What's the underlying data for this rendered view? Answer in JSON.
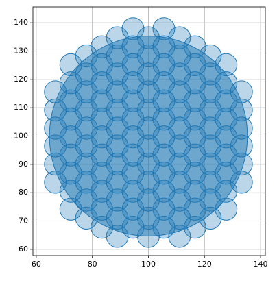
{
  "chart_data": {
    "type": "scatter",
    "x": [
      66.8,
      66.8,
      66.8,
      66.8,
      66.8,
      66.8,
      72.3,
      72.3,
      72.3,
      72.3,
      72.3,
      72.3,
      72.3,
      72.3,
      72.3,
      77.9,
      77.9,
      77.9,
      77.9,
      77.9,
      77.9,
      77.9,
      77.9,
      77.9,
      77.9,
      83.4,
      83.4,
      83.4,
      83.4,
      83.4,
      83.4,
      83.4,
      83.4,
      83.4,
      83.4,
      83.4,
      88.9,
      88.9,
      88.9,
      88.9,
      88.9,
      88.9,
      88.9,
      88.9,
      88.9,
      88.9,
      88.9,
      88.9,
      94.5,
      94.5,
      94.5,
      94.5,
      94.5,
      94.5,
      94.5,
      94.5,
      94.5,
      94.5,
      94.5,
      94.5,
      100,
      100,
      100,
      100,
      100,
      100,
      100,
      100,
      100,
      100,
      100,
      100,
      105.5,
      105.5,
      105.5,
      105.5,
      105.5,
      105.5,
      105.5,
      105.5,
      105.5,
      105.5,
      105.5,
      105.5,
      111.1,
      111.1,
      111.1,
      111.1,
      111.1,
      111.1,
      111.1,
      111.1,
      111.1,
      111.1,
      111.1,
      111.1,
      116.6,
      116.6,
      116.6,
      116.6,
      116.6,
      116.6,
      116.6,
      116.6,
      116.6,
      116.6,
      116.6,
      122.1,
      122.1,
      122.1,
      122.1,
      122.1,
      122.1,
      122.1,
      122.1,
      122.1,
      122.1,
      127.7,
      127.7,
      127.7,
      127.7,
      127.7,
      127.7,
      127.7,
      127.7,
      127.7,
      133.2,
      133.2,
      133.2,
      133.2,
      133.2,
      133.2
    ],
    "values": [
      83.7,
      90.1,
      96.5,
      102.8,
      109.2,
      115.6,
      74.2,
      80.5,
      86.9,
      93.3,
      99.7,
      106.0,
      112.4,
      118.8,
      125.2,
      71.0,
      77.4,
      83.7,
      90.1,
      96.5,
      102.8,
      109.2,
      115.6,
      121.9,
      128.3,
      67.8,
      74.2,
      80.5,
      86.9,
      93.3,
      99.7,
      106.0,
      112.4,
      118.8,
      125.2,
      131.5,
      64.6,
      71.0,
      77.4,
      83.7,
      90.1,
      96.5,
      102.8,
      109.2,
      115.6,
      121.9,
      128.3,
      134.7,
      67.8,
      74.2,
      80.5,
      86.9,
      93.3,
      99.7,
      106.0,
      112.4,
      118.8,
      125.2,
      131.5,
      137.9,
      64.6,
      71.0,
      77.4,
      83.7,
      90.1,
      96.5,
      102.8,
      109.2,
      115.6,
      121.9,
      128.3,
      134.7,
      67.8,
      74.2,
      80.5,
      86.9,
      93.3,
      99.7,
      106.0,
      112.4,
      118.8,
      125.2,
      131.5,
      137.9,
      64.6,
      71.0,
      77.4,
      83.7,
      90.1,
      96.5,
      102.8,
      109.2,
      115.6,
      121.9,
      128.3,
      134.7,
      67.8,
      74.2,
      80.5,
      86.9,
      93.3,
      99.7,
      106.0,
      112.4,
      118.8,
      125.2,
      131.5,
      71.0,
      77.4,
      83.7,
      90.1,
      96.5,
      102.8,
      109.2,
      115.6,
      121.9,
      128.3,
      74.2,
      80.5,
      86.9,
      93.3,
      99.7,
      106.0,
      112.4,
      118.8,
      125.2,
      83.7,
      90.1,
      96.5,
      102.8,
      109.2,
      115.6
    ],
    "radius": 3.9,
    "color": "#1f77b4",
    "large_circle": {
      "x": 100,
      "y": 100,
      "radius": 35.3
    },
    "xlim": [
      58.8,
      141.7
    ],
    "ylim": [
      57.8,
      145.6
    ],
    "xticks": [
      60,
      80,
      100,
      120,
      140
    ],
    "yticks": [
      60,
      70,
      80,
      90,
      100,
      110,
      120,
      130,
      140
    ],
    "grid": true
  }
}
